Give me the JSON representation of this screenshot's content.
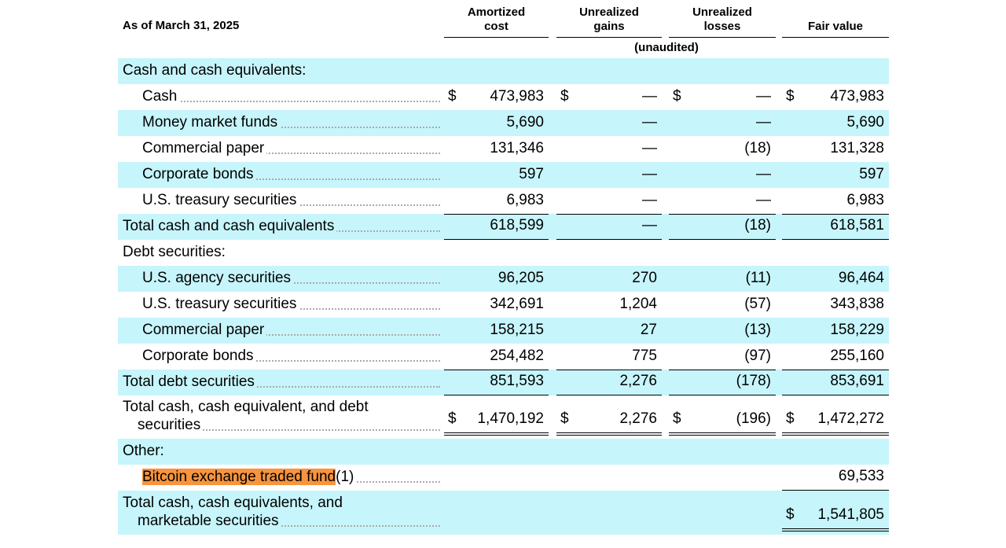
{
  "header": {
    "as_of": "As of March 31, 2025",
    "columns": [
      "Amortized cost",
      "Unrealized gains",
      "Unrealized losses",
      "Fair value"
    ],
    "subheader": "(unaudited)"
  },
  "table": {
    "rows": [
      {
        "label": "Cash and cash equivalents:"
      },
      {
        "label": "Cash",
        "symbols": [
          "$",
          "$",
          "$",
          "$"
        ],
        "values": [
          "473,983",
          "—",
          "—",
          "473,983"
        ]
      },
      {
        "label": "Money market funds",
        "values": [
          "5,690",
          "—",
          "—",
          "5,690"
        ]
      },
      {
        "label": "Commercial paper",
        "values": [
          "131,346",
          "—",
          "(18)",
          "131,328"
        ]
      },
      {
        "label": "Corporate bonds",
        "values": [
          "597",
          "—",
          "—",
          "597"
        ]
      },
      {
        "label": "U.S. treasury securities",
        "values": [
          "6,983",
          "—",
          "—",
          "6,983"
        ]
      },
      {
        "label": "Total cash and cash equivalents",
        "values": [
          "618,599",
          "—",
          "(18)",
          "618,581"
        ]
      },
      {
        "label": "Debt securities:"
      },
      {
        "label": "U.S. agency securities",
        "values": [
          "96,205",
          "270",
          "(11)",
          "96,464"
        ]
      },
      {
        "label": "U.S. treasury securities",
        "values": [
          "342,691",
          "1,204",
          "(57)",
          "343,838"
        ]
      },
      {
        "label": "Commercial paper",
        "values": [
          "158,215",
          "27",
          "(13)",
          "158,229"
        ]
      },
      {
        "label": "Corporate bonds",
        "values": [
          "254,482",
          "775",
          "(97)",
          "255,160"
        ]
      },
      {
        "label": "Total debt securities",
        "values": [
          "851,593",
          "2,276",
          "(178)",
          "853,691"
        ]
      },
      {
        "label": "Total cash, cash equivalent, and debt securities",
        "symbols": [
          "$",
          "$",
          "$",
          "$"
        ],
        "values": [
          "1,470,192",
          "2,276",
          "(196)",
          "1,472,272"
        ]
      },
      {
        "label": "Other:"
      },
      {
        "label": "Bitcoin exchange traded fund",
        "note": "(1)",
        "values": [
          null,
          null,
          null,
          "69,533"
        ]
      },
      {
        "label": "Total cash, cash equivalents, and marketable securities",
        "symbols": [
          null,
          null,
          null,
          "$"
        ],
        "values": [
          null,
          null,
          null,
          "1,541,805"
        ]
      }
    ]
  }
}
